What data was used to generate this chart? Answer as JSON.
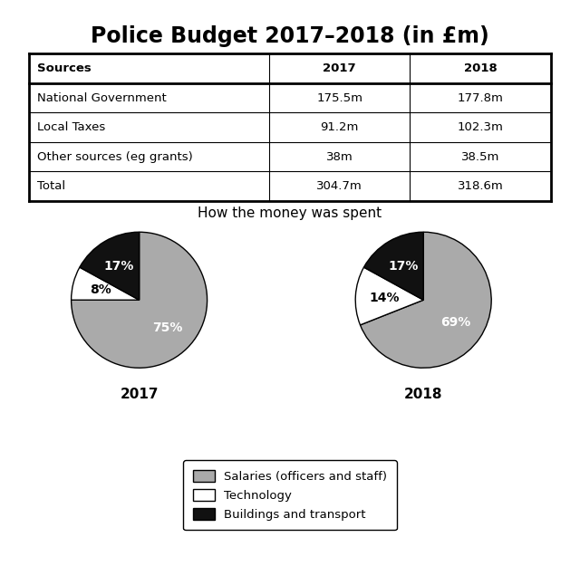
{
  "title": "Police Budget 2017–2018 (in £m)",
  "table": {
    "headers": [
      "Sources",
      "2017",
      "2018"
    ],
    "rows": [
      [
        "National Government",
        "175.5m",
        "177.8m"
      ],
      [
        "Local Taxes",
        "91.2m",
        "102.3m"
      ],
      [
        "Other sources (eg grants)",
        "38m",
        "38.5m"
      ],
      [
        "Total",
        "304.7m",
        "318.6m"
      ]
    ]
  },
  "pie_title": "How the money was spent",
  "pie_2017": {
    "label": "2017",
    "values": [
      75,
      8,
      17
    ],
    "labels": [
      "75%",
      "8%",
      "17%"
    ],
    "label_colors": [
      "white",
      "black",
      "white"
    ],
    "colors": [
      "#aaaaaa",
      "#ffffff",
      "#111111"
    ],
    "startangle": 90
  },
  "pie_2018": {
    "label": "2018",
    "values": [
      69,
      14,
      17
    ],
    "labels": [
      "69%",
      "14%",
      "17%"
    ],
    "label_colors": [
      "white",
      "black",
      "white"
    ],
    "colors": [
      "#aaaaaa",
      "#ffffff",
      "#111111"
    ],
    "startangle": 90
  },
  "legend_labels": [
    "Salaries (officers and staff)",
    "Technology",
    "Buildings and transport"
  ],
  "legend_colors": [
    "#aaaaaa",
    "#ffffff",
    "#111111"
  ],
  "background_color": "#ffffff",
  "title_fontsize": 17,
  "table_fontsize": 9.5,
  "pie_label_fontsize": 10,
  "pie_year_fontsize": 11,
  "pie_title_fontsize": 11,
  "legend_fontsize": 9.5
}
